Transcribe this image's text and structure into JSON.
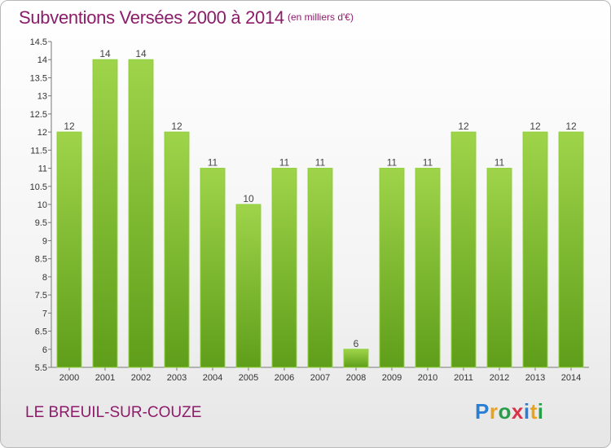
{
  "header": {
    "title": "Subventions Versées 2000 à 2014",
    "unit": "(en milliers d'€)"
  },
  "footer": {
    "commune": "LE BREUIL-SUR-COUZE",
    "logo": {
      "letters": [
        "P",
        "r",
        "o",
        "x",
        "i",
        "t",
        "i"
      ],
      "colors": [
        "#2a7fd4",
        "#e8a21b",
        "#2a9d4a",
        "#d8334a",
        "#2a7fd4",
        "#e8a21b",
        "#2a9d4a"
      ]
    }
  },
  "chart_data": {
    "type": "bar",
    "title": "Subventions Versées 2000 à 2014",
    "subtitle": "(en milliers d'€)",
    "xlabel": "",
    "ylabel": "",
    "categories": [
      "2000",
      "2001",
      "2002",
      "2003",
      "2004",
      "2005",
      "2006",
      "2007",
      "2008",
      "2009",
      "2010",
      "2011",
      "2012",
      "2013",
      "2014"
    ],
    "values": [
      12,
      14,
      14,
      12,
      11,
      10,
      11,
      11,
      6,
      11,
      11,
      12,
      11,
      12,
      12
    ],
    "ylim": [
      5.5,
      14.5
    ],
    "yticks": [
      5.5,
      6,
      6.5,
      7,
      7.5,
      8,
      8.5,
      9,
      9.5,
      10,
      10.5,
      11,
      11.5,
      12,
      12.5,
      13,
      13.5,
      14,
      14.5
    ],
    "grid": false,
    "legend": "none",
    "bar_color": "#7dbf2e"
  }
}
